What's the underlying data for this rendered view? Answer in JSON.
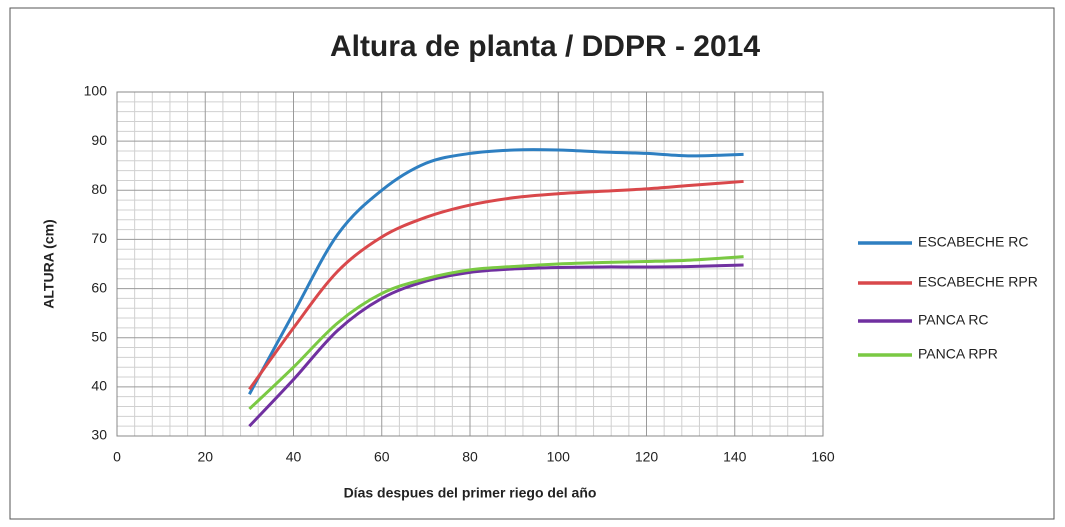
{
  "chart_data": {
    "type": "line",
    "title": "Altura de planta / DDPR - 2014",
    "x_label": "Días despues del primer riego del año",
    "y_label": "ALTURA (cm)",
    "x": [
      30,
      40,
      50,
      60,
      70,
      80,
      90,
      100,
      110,
      120,
      130,
      142
    ],
    "series": [
      {
        "name": "ESCABECHE RC",
        "color": "#2e7fc1",
        "values": [
          38.5,
          55,
          71,
          80,
          85.5,
          87.5,
          88.2,
          88.2,
          87.8,
          87.5,
          87,
          87.3
        ]
      },
      {
        "name": "ESCABECHE RPR",
        "color": "#d9484b",
        "values": [
          39.5,
          52,
          63.5,
          70.5,
          74.5,
          77,
          78.5,
          79.3,
          79.8,
          80.3,
          81,
          81.8
        ]
      },
      {
        "name": "PANCA RC",
        "color": "#7030a0",
        "values": [
          32,
          41.5,
          51.5,
          58,
          61.5,
          63.3,
          64,
          64.3,
          64.4,
          64.4,
          64.5,
          64.8
        ]
      },
      {
        "name": "PANCA RPR",
        "color": "#7ac943",
        "values": [
          35.5,
          44,
          53,
          59,
          62,
          63.8,
          64.5,
          65,
          65.3,
          65.5,
          65.8,
          66.5
        ]
      }
    ],
    "xlim": [
      0,
      160
    ],
    "xticks": [
      0,
      20,
      40,
      60,
      80,
      100,
      120,
      140,
      160
    ],
    "ylim": [
      30,
      100
    ],
    "yticks": [
      30,
      40,
      50,
      60,
      70,
      80,
      90,
      100
    ],
    "grid": true,
    "minor_grid": true,
    "legend": "right"
  }
}
